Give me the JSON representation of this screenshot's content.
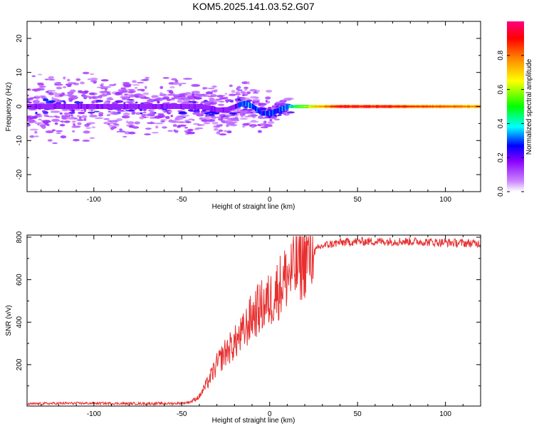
{
  "title": "KOM5.2025.141.03.52.G07",
  "chart_data": [
    {
      "type": "heatmap",
      "xlabel": "Height of straight line (km)",
      "ylabel": "Frequency (Hz)",
      "xlim": [
        -138,
        120
      ],
      "ylim": [
        -25,
        25
      ],
      "xticks": [
        -100,
        -50,
        0,
        50,
        100
      ],
      "yticks": [
        -20,
        -10,
        0,
        10,
        20
      ],
      "colorbar": {
        "label": "Normalized spectral amplitude",
        "range": [
          0.0,
          1.0
        ],
        "ticks": [
          "0.0",
          "0.2",
          "0.4",
          "0.6",
          "0.8"
        ],
        "colors": [
          "#ffffff",
          "#8800ff",
          "#0000ff",
          "#00ffff",
          "#00ff00",
          "#ffff00",
          "#ff8800",
          "#ff0000",
          "#ff0080"
        ]
      },
      "ridge": {
        "x": [
          -138,
          -120,
          -100,
          -80,
          -60,
          -40,
          -30,
          -25,
          -20,
          -15,
          -10,
          -5,
          0,
          5,
          10,
          20,
          40,
          60,
          80,
          100,
          120
        ],
        "frequency": [
          0,
          0,
          0,
          0,
          0,
          0,
          -1,
          -1,
          0,
          1,
          0,
          -2,
          -2,
          -1,
          0,
          0,
          0,
          0,
          0,
          0,
          0
        ],
        "amplitude": [
          0.15,
          0.15,
          0.15,
          0.15,
          0.15,
          0.15,
          0.15,
          0.15,
          0.2,
          0.35,
          0.35,
          0.3,
          0.3,
          0.3,
          0.35,
          0.55,
          0.85,
          0.85,
          0.8,
          0.75,
          0.7
        ]
      }
    },
    {
      "type": "line",
      "xlabel": "Height of straight line (km)",
      "ylabel": "SNR (v/v)",
      "xlim": [
        -138,
        120
      ],
      "ylim": [
        5,
        810
      ],
      "xticks": [
        -100,
        -50,
        0,
        50,
        100
      ],
      "yticks": [
        200,
        400,
        600,
        800
      ],
      "series": [
        {
          "color": "#e83030",
          "x": [
            -138,
            -120,
            -100,
            -80,
            -60,
            -50,
            -45,
            -40,
            -35,
            -30,
            -25,
            -20,
            -15,
            -10,
            -5,
            0,
            5,
            10,
            15,
            20,
            25,
            30,
            40,
            50,
            60,
            80,
            100,
            120
          ],
          "y": [
            15,
            18,
            18,
            17,
            17,
            18,
            25,
            50,
            120,
            200,
            260,
            300,
            350,
            430,
            470,
            500,
            560,
            620,
            650,
            700,
            730,
            760,
            775,
            780,
            780,
            780,
            775,
            770
          ]
        }
      ]
    }
  ]
}
